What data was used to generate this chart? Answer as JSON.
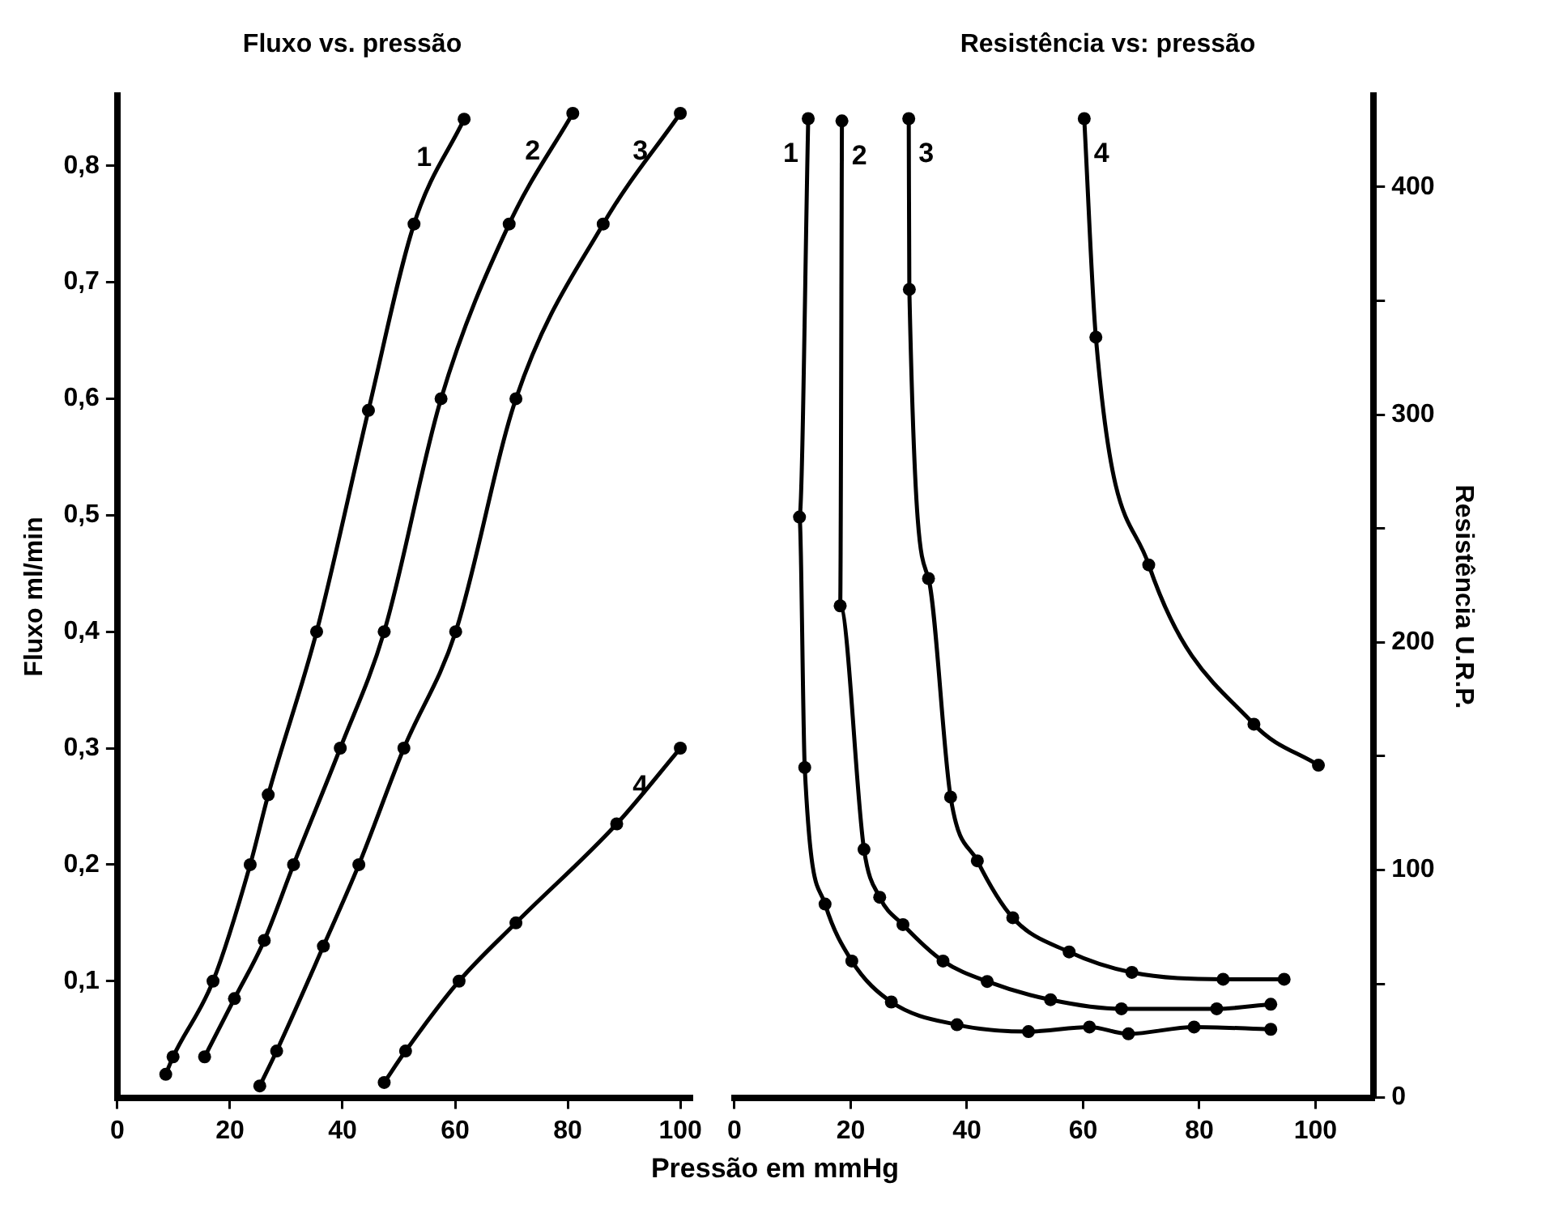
{
  "chart_data": [
    {
      "type": "line",
      "title": "Fluxo vs. pressão",
      "xlabel": "Pressão em mmHg",
      "ylabel": "Fluxo ml/min",
      "legend": false,
      "grid": false,
      "marker": "circle",
      "line_style": "solid",
      "xlim": [
        0,
        102
      ],
      "xticks": [
        0,
        20,
        40,
        60,
        80,
        100
      ],
      "ylim": [
        0,
        0.86
      ],
      "yticks": [
        {
          "value": 0.1,
          "label": "0,1"
        },
        {
          "value": 0.2,
          "label": "0,2"
        },
        {
          "value": 0.3,
          "label": "0,3"
        },
        {
          "value": 0.4,
          "label": "0,4"
        },
        {
          "value": 0.5,
          "label": "0,5"
        },
        {
          "value": 0.6,
          "label": "0,6"
        },
        {
          "value": 0.7,
          "label": "0,7"
        },
        {
          "value": 0.8,
          "label": "0,8"
        }
      ],
      "series": [
        {
          "name": "1",
          "color": "#000000",
          "x": [
            8.6,
            9.9,
            17,
            23.6,
            26.8,
            35.4,
            44.6,
            52.7,
            61.6
          ],
          "values": [
            0.02,
            0.035,
            0.1,
            0.2,
            0.26,
            0.4,
            0.59,
            0.75,
            0.84
          ]
        },
        {
          "name": "2",
          "color": "#000000",
          "x": [
            15.5,
            20.8,
            26.1,
            31.3,
            39.6,
            47.4,
            57.5,
            69.6,
            80.9
          ],
          "values": [
            0.035,
            0.085,
            0.135,
            0.2,
            0.3,
            0.4,
            0.6,
            0.75,
            0.845
          ]
        },
        {
          "name": "3",
          "color": "#000000",
          "x": [
            25.3,
            28.3,
            36.6,
            42.9,
            50.9,
            60.1,
            70.8,
            86.3,
            100
          ],
          "values": [
            0.01,
            0.04,
            0.13,
            0.2,
            0.3,
            0.4,
            0.6,
            0.75,
            0.845
          ]
        },
        {
          "name": "4",
          "color": "#000000",
          "x": [
            47.4,
            51.2,
            60.7,
            70.8,
            88.7,
            100
          ],
          "values": [
            0.013,
            0.04,
            0.1,
            0.15,
            0.235,
            0.3
          ]
        }
      ]
    },
    {
      "type": "line",
      "title": "Resistência vs: pressão",
      "y2label": "Resistência U.R.P.",
      "legend": false,
      "grid": false,
      "marker": "circle",
      "line_style": "solid",
      "xlim": [
        0,
        110
      ],
      "xticks": [
        0,
        20,
        40,
        60,
        80,
        100
      ],
      "y2lim": [
        0,
        440
      ],
      "y2ticks": [
        0,
        {
          "value": 50,
          "label": null
        },
        100,
        {
          "value": 150,
          "label": null
        },
        200,
        {
          "value": 250,
          "label": null
        },
        300,
        {
          "value": 350,
          "label": null
        },
        400
      ],
      "series": [
        {
          "name": "1",
          "color": "#000000",
          "axis": "y2",
          "x": [
            12.7,
            11.2,
            12.1,
            15.6,
            20.2,
            27,
            38.3,
            50.6,
            61.1,
            67.8,
            79.1,
            92.3
          ],
          "values": [
            430,
            255,
            145,
            85,
            60,
            42,
            32,
            29,
            31,
            28,
            31,
            30
          ]
        },
        {
          "name": "2",
          "color": "#000000",
          "axis": "y2",
          "x": [
            18.5,
            18.2,
            22.3,
            25,
            29,
            35.9,
            43.5,
            54.4,
            66.6,
            83,
            92.3
          ],
          "values": [
            429,
            216,
            109,
            88,
            76,
            60,
            51,
            43,
            39,
            39,
            41
          ]
        },
        {
          "name": "3",
          "color": "#000000",
          "axis": "y2",
          "x": [
            30,
            30.1,
            33.4,
            37.2,
            41.8,
            47.9,
            57.6,
            68.4,
            84.1,
            94.6
          ],
          "values": [
            430,
            355,
            228,
            132,
            104,
            79,
            64,
            55,
            52,
            52
          ]
        },
        {
          "name": "4",
          "color": "#000000",
          "axis": "y2",
          "x": [
            60.2,
            62.2,
            71.3,
            89.4,
            100.5
          ],
          "values": [
            430,
            334,
            234,
            164,
            146
          ]
        }
      ]
    }
  ]
}
